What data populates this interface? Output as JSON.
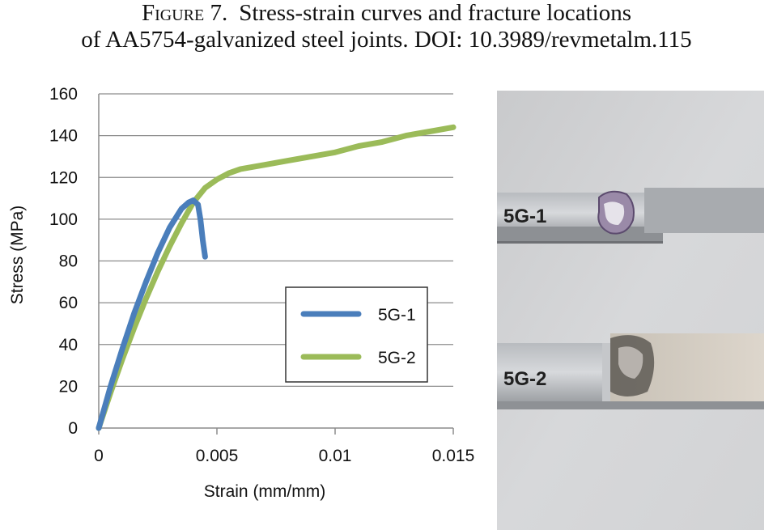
{
  "figure": {
    "label": "Figure 7.",
    "caption_line1": "Stress-strain curves and fracture locations",
    "caption_line2": "of AA5754-galvanized steel joints. DOI: 10.3989/revmetalm.115"
  },
  "photo": {
    "specimen1_label": "5G-1",
    "specimen2_label": "5G-2"
  },
  "colors": {
    "series1": "#4a7ebb",
    "series2": "#9bbb59",
    "grid": "#8c8c8c"
  },
  "chart_data": {
    "type": "line",
    "title": "",
    "xlabel": "Strain (mm/mm)",
    "ylabel": "Stress (MPa)",
    "xlim": [
      0,
      0.015
    ],
    "ylim": [
      0,
      160
    ],
    "x_ticks": [
      "0",
      "0.005",
      "0.01",
      "0.015"
    ],
    "y_ticks": [
      "0",
      "20",
      "40",
      "60",
      "80",
      "100",
      "120",
      "140",
      "160"
    ],
    "grid": "horizontal",
    "legend_position": "right-center",
    "series": [
      {
        "name": "5G-1",
        "x": [
          0,
          0.0005,
          0.001,
          0.0015,
          0.002,
          0.0025,
          0.003,
          0.0035,
          0.0038,
          0.004,
          0.0042,
          0.0043,
          0.0044,
          0.0045
        ],
        "y": [
          0,
          20,
          38,
          55,
          70,
          84,
          96,
          105,
          108,
          109,
          107,
          100,
          90,
          82
        ]
      },
      {
        "name": "5G-2",
        "x": [
          0,
          0.0005,
          0.001,
          0.0015,
          0.002,
          0.0025,
          0.003,
          0.0035,
          0.004,
          0.0045,
          0.005,
          0.0055,
          0.006,
          0.007,
          0.008,
          0.009,
          0.01,
          0.011,
          0.012,
          0.013,
          0.014,
          0.015
        ],
        "y": [
          0,
          17,
          33,
          48,
          62,
          75,
          87,
          98,
          108,
          115,
          119,
          122,
          124,
          126,
          128,
          130,
          132,
          135,
          137,
          140,
          142,
          144
        ]
      }
    ]
  }
}
